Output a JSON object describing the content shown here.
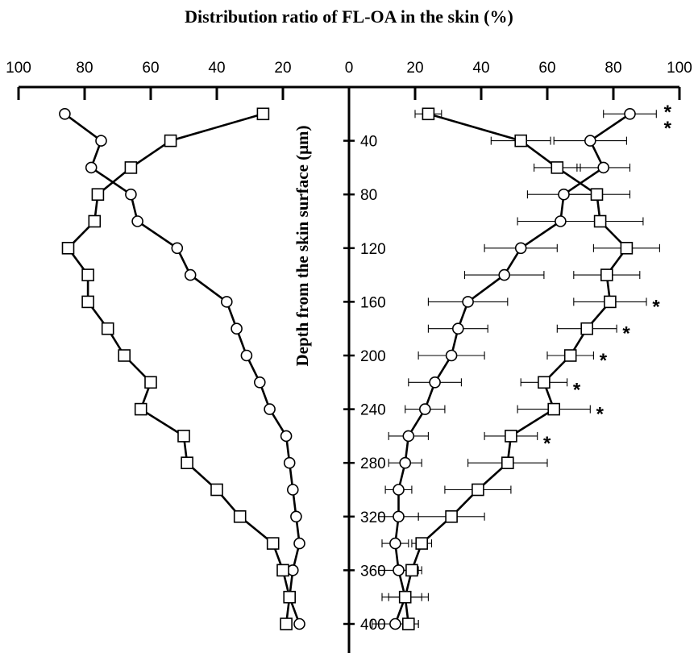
{
  "chart_data": {
    "type": "line",
    "title": "Distribution ratio of FL-OA in the skin (%)",
    "xlabel": "",
    "ylabel": "Depth from the skin surface (μm)",
    "x_tick_labels": [
      "100",
      "80",
      "60",
      "40",
      "20",
      "0",
      "20",
      "40",
      "60",
      "80",
      "100"
    ],
    "y_ticks": [
      40,
      80,
      120,
      160,
      200,
      240,
      280,
      320,
      360,
      400
    ],
    "xlim_left_panel": [
      100,
      0
    ],
    "xlim_right_panel": [
      0,
      100
    ],
    "ylim": [
      0,
      420
    ],
    "grid": false,
    "legend": "none",
    "depths": [
      20,
      40,
      60,
      80,
      100,
      120,
      140,
      160,
      180,
      200,
      220,
      240,
      260,
      280,
      300,
      320,
      340,
      360,
      380,
      400
    ],
    "left_panel": {
      "series": [
        {
          "marker": "circle",
          "values": [
            86,
            75,
            78,
            66,
            64,
            52,
            48,
            37,
            34,
            31,
            27,
            24,
            19,
            18,
            17,
            16,
            15,
            17,
            18,
            15
          ]
        },
        {
          "marker": "square",
          "values": [
            26,
            54,
            66,
            76,
            77,
            85,
            79,
            79,
            73,
            68,
            60,
            63,
            50,
            49,
            40,
            33,
            23,
            20,
            18,
            19
          ]
        }
      ]
    },
    "right_panel": {
      "series": [
        {
          "marker": "circle",
          "values": [
            85,
            73,
            77,
            65,
            64,
            52,
            47,
            36,
            33,
            31,
            26,
            23,
            18,
            17,
            15,
            15,
            14,
            15,
            17,
            14
          ],
          "error": [
            8,
            11,
            8,
            11,
            13,
            11,
            12,
            12,
            9,
            10,
            8,
            6,
            6,
            5,
            4,
            6,
            4,
            6,
            7,
            7
          ]
        },
        {
          "marker": "square",
          "values": [
            24,
            52,
            63,
            75,
            76,
            84,
            78,
            79,
            72,
            67,
            59,
            62,
            49,
            48,
            39,
            31,
            22,
            19,
            17,
            18
          ],
          "error": [
            4,
            9,
            7,
            10,
            13,
            10,
            10,
            11,
            9,
            7,
            7,
            11,
            8,
            12,
            10,
            10,
            3,
            3,
            5,
            3
          ]
        }
      ],
      "significance": [
        {
          "depth": 15,
          "label": "*"
        },
        {
          "depth": 27,
          "label": "*"
        },
        {
          "depth": 160,
          "label": "*"
        },
        {
          "depth": 180,
          "label": "*"
        },
        {
          "depth": 200,
          "label": "*"
        },
        {
          "depth": 222,
          "label": "*"
        },
        {
          "depth": 240,
          "label": "*"
        },
        {
          "depth": 262,
          "label": "*"
        }
      ]
    }
  }
}
